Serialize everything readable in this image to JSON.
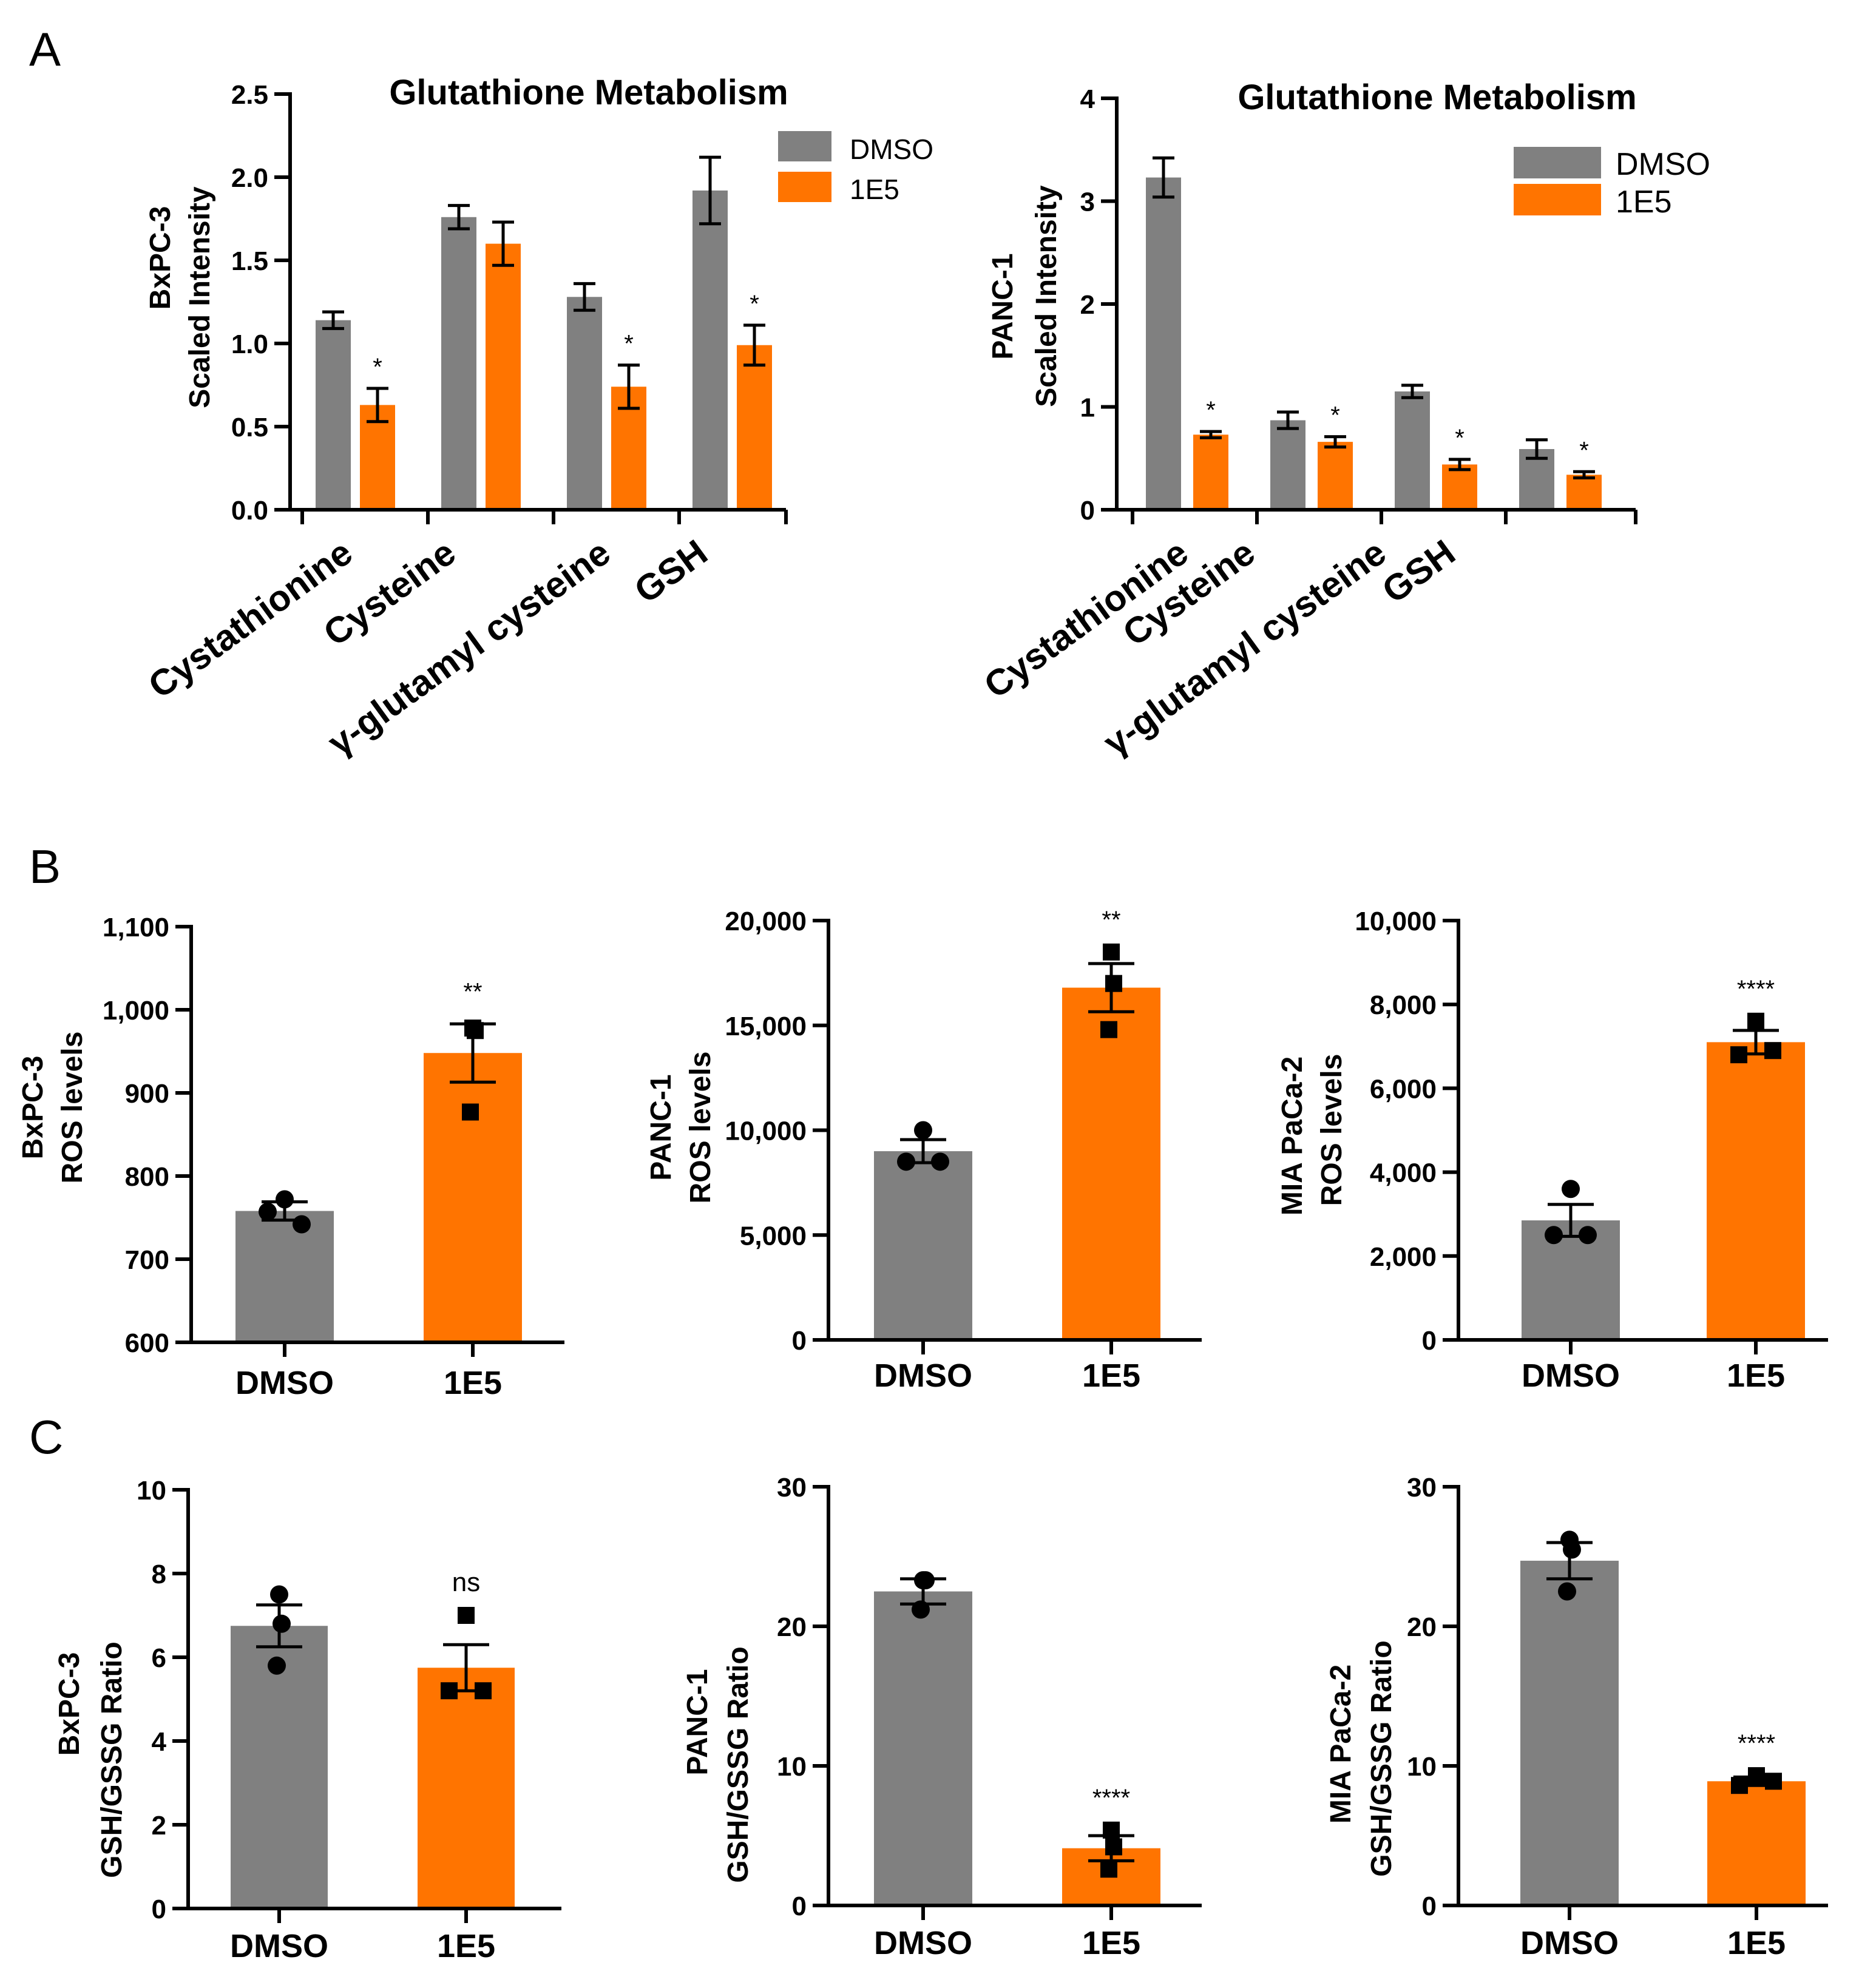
{
  "colors": {
    "dmso": "#808080",
    "e5": "#ff7400"
  },
  "legend": {
    "dmso": "DMSO",
    "e5": "1E5"
  },
  "panels": {
    "A": "A",
    "B": "B",
    "C": "C"
  },
  "chart_data": [
    {
      "id": "A1",
      "type": "bar",
      "title": "Glutathione Metabolism",
      "ylabel_line1": "BxPC-3",
      "ylabel_line2": "Scaled Intensity",
      "categories": [
        "Cystathionine",
        "Cysteine",
        "γ-glutamyl cysteine",
        "GSH"
      ],
      "ylim": [
        0,
        2.5
      ],
      "yticks": [
        0,
        0.5,
        1.0,
        1.5,
        2.0,
        2.5
      ],
      "ytick_labels": [
        "0.0",
        "0.5",
        "1.0",
        "1.5",
        "2.0",
        "2.5"
      ],
      "series": [
        {
          "name": "DMSO",
          "values": [
            1.14,
            1.76,
            1.28,
            1.92
          ],
          "err": [
            0.05,
            0.07,
            0.08,
            0.2
          ]
        },
        {
          "name": "1E5",
          "values": [
            0.63,
            1.6,
            0.74,
            0.99
          ],
          "err": [
            0.1,
            0.13,
            0.13,
            0.12
          ]
        }
      ],
      "significance": [
        "*",
        "",
        "*",
        "*"
      ],
      "legend_position": "top-right"
    },
    {
      "id": "A2",
      "type": "bar",
      "title": "Glutathione Metabolism",
      "ylabel_line1": "PANC-1",
      "ylabel_line2": "Scaled Intensity",
      "categories": [
        "Cystathionine",
        "Cysteine",
        "γ-glutamyl cysteine",
        "GSH"
      ],
      "ylim": [
        0,
        4
      ],
      "yticks": [
        0,
        1,
        2,
        3,
        4
      ],
      "ytick_labels": [
        "0",
        "1",
        "2",
        "3",
        "4"
      ],
      "series": [
        {
          "name": "DMSO",
          "values": [
            3.23,
            0.87,
            1.15,
            0.59
          ],
          "err": [
            0.19,
            0.08,
            0.06,
            0.09
          ]
        },
        {
          "name": "1E5",
          "values": [
            0.73,
            0.66,
            0.44,
            0.34
          ],
          "err": [
            0.03,
            0.05,
            0.05,
            0.03
          ]
        }
      ],
      "significance": [
        "*",
        "*",
        "*",
        "*"
      ],
      "legend_position": "top-right"
    },
    {
      "id": "B1",
      "type": "bar",
      "ylabel_line1": "BxPC-3",
      "ylabel_line2": "ROS levels",
      "categories": [
        "DMSO",
        "1E5"
      ],
      "ylim": [
        600,
        1100
      ],
      "yticks": [
        600,
        700,
        800,
        900,
        1000,
        1100
      ],
      "ytick_labels": [
        "600",
        "700",
        "800",
        "900",
        "1,000",
        "1,100"
      ],
      "values": [
        758,
        948
      ],
      "err": [
        11,
        35
      ],
      "points": [
        [
          772,
          757,
          742
        ],
        [
          978,
          975,
          877
        ]
      ],
      "significance": [
        "",
        "**"
      ]
    },
    {
      "id": "B2",
      "type": "bar",
      "ylabel_line1": "PANC-1",
      "ylabel_line2": "ROS levels",
      "categories": [
        "DMSO",
        "1E5"
      ],
      "ylim": [
        0,
        20000
      ],
      "yticks": [
        0,
        5000,
        10000,
        15000,
        20000
      ],
      "ytick_labels": [
        "0",
        "5,000",
        "10,000",
        "15,000",
        "20,000"
      ],
      "values": [
        9000,
        16800
      ],
      "err": [
        550,
        1150
      ],
      "points": [
        [
          10000,
          8500,
          8500
        ],
        [
          18500,
          17000,
          14800
        ]
      ],
      "significance": [
        "",
        "**"
      ]
    },
    {
      "id": "B3",
      "type": "bar",
      "ylabel_line1": "MIA PaCa-2",
      "ylabel_line2": "ROS levels",
      "categories": [
        "DMSO",
        "1E5"
      ],
      "ylim": [
        0,
        10000
      ],
      "yticks": [
        0,
        2000,
        4000,
        6000,
        8000,
        10000
      ],
      "ytick_labels": [
        "0",
        "2,000",
        "4,000",
        "6,000",
        "8,000",
        "10,000"
      ],
      "values": [
        2850,
        7100
      ],
      "err": [
        380,
        280
      ],
      "points": [
        [
          3600,
          2500,
          2500
        ],
        [
          7600,
          6800,
          6900
        ]
      ],
      "significance": [
        "",
        "****"
      ]
    },
    {
      "id": "C1",
      "type": "bar",
      "ylabel_line1": "BxPC-3",
      "ylabel_line2": "GSH/GSSG Ratio",
      "categories": [
        "DMSO",
        "1E5"
      ],
      "ylim": [
        0,
        10
      ],
      "yticks": [
        0,
        2,
        4,
        6,
        8,
        10
      ],
      "ytick_labels": [
        "0",
        "2",
        "4",
        "6",
        "8",
        "10"
      ],
      "values": [
        6.75,
        5.75
      ],
      "err": [
        0.5,
        0.55
      ],
      "points": [
        [
          7.5,
          6.8,
          5.8
        ],
        [
          7.0,
          5.2,
          5.2
        ]
      ],
      "significance": [
        "",
        "ns"
      ]
    },
    {
      "id": "C2",
      "type": "bar",
      "ylabel_line1": "PANC-1",
      "ylabel_line2": "GSH/GSSG Ratio",
      "categories": [
        "DMSO",
        "1E5"
      ],
      "ylim": [
        0,
        30
      ],
      "yticks": [
        0,
        10,
        20,
        30
      ],
      "ytick_labels": [
        "0",
        "10",
        "20",
        "30"
      ],
      "values": [
        22.5,
        4.1
      ],
      "err": [
        0.9,
        0.9
      ],
      "points": [
        [
          23.3,
          23.3,
          21.2
        ],
        [
          5.4,
          4.2,
          2.6
        ]
      ],
      "significance": [
        "",
        "****"
      ]
    },
    {
      "id": "C3",
      "type": "bar",
      "ylabel_line1": "MIA PaCa-2",
      "ylabel_line2": "GSH/GSSG Ratio",
      "categories": [
        "DMSO",
        "1E5"
      ],
      "ylim": [
        0,
        30
      ],
      "yticks": [
        0,
        10,
        20,
        30
      ],
      "ytick_labels": [
        "0",
        "10",
        "20",
        "30"
      ],
      "values": [
        24.7,
        8.9
      ],
      "err": [
        1.3,
        0.3
      ],
      "points": [
        [
          26.2,
          25.5,
          22.5
        ],
        [
          9.3,
          8.6,
          8.9
        ]
      ],
      "significance": [
        "",
        "****"
      ]
    }
  ]
}
